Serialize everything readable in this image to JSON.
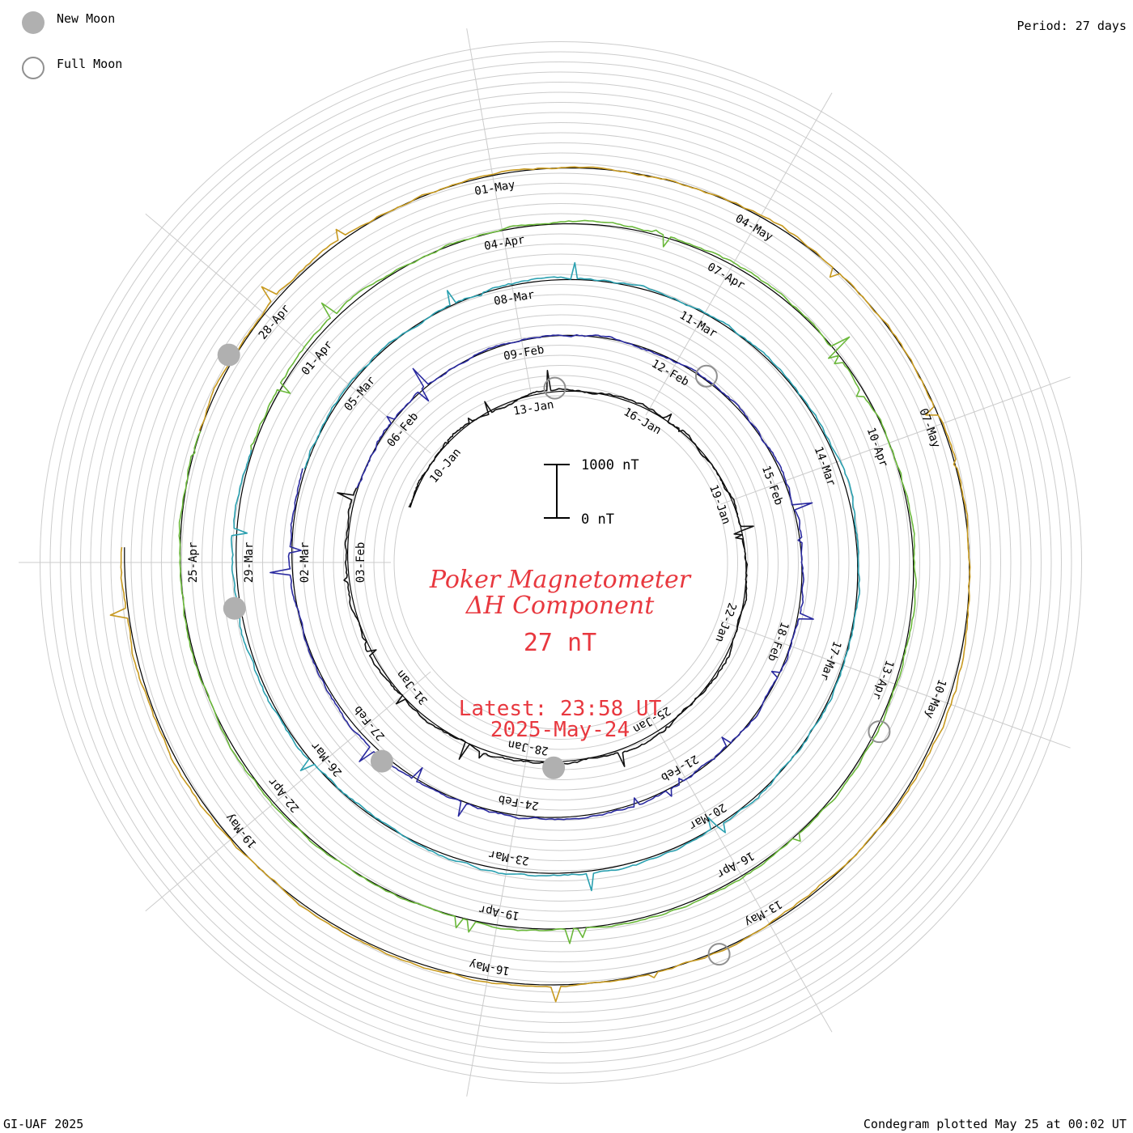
{
  "legend": {
    "new_moon_label": "New Moon",
    "full_moon_label": "Full Moon",
    "new_moon_color": "#b0b0b0",
    "full_moon_color": "#909090"
  },
  "header": {
    "period": "Period: 27 days"
  },
  "footer": {
    "credit": "GI-UAF 2025",
    "plotted": "Condegram plotted May 25 at 00:02 UT"
  },
  "center": {
    "title_line1": "Poker Magnetometer",
    "title_line2": "ΔH Component",
    "value": "27 nT",
    "latest_line1": "Latest: 23:58 UT",
    "latest_line2": "2025-May-24",
    "text_color": "#e8383f"
  },
  "scale_bar": {
    "top_label": "1000 nT",
    "bottom_label": "0 nT"
  },
  "chart_data": {
    "type": "line",
    "title": "Poker Magnetometer ΔH Component",
    "period_days": 27,
    "scale_nT": [
      0,
      1000
    ],
    "cycles": [
      {
        "color": "#111111",
        "labels": [
          "10-Jan",
          "13-Jan",
          "16-Jan",
          "19-Jan",
          "22-Jan",
          "25-Jan",
          "28-Jan",
          "31-Jan",
          "03-Feb"
        ]
      },
      {
        "color": "#2a2aa0",
        "labels": [
          "06-Feb",
          "09-Feb",
          "12-Feb",
          "15-Feb",
          "18-Feb",
          "21-Feb",
          "24-Feb",
          "27-Feb",
          "02-Mar"
        ]
      },
      {
        "color": "#2aa0b0",
        "labels": [
          "05-Mar",
          "08-Mar",
          "11-Mar",
          "14-Mar",
          "17-Mar",
          "20-Mar",
          "23-Mar",
          "26-Mar",
          "29-Mar"
        ]
      },
      {
        "color": "#6ab83a",
        "labels": [
          "01-Apr",
          "04-Apr",
          "07-Apr",
          "10-Apr",
          "13-Apr",
          "16-Apr",
          "19-Apr",
          "22-Apr",
          "25-Apr"
        ]
      },
      {
        "color": "#c89a20",
        "labels": [
          "28-Apr",
          "01-May",
          "04-May",
          "07-May",
          "10-May",
          "13-May",
          "16-May",
          "19-May"
        ]
      }
    ],
    "new_moons": [
      "28-Apr",
      "29-Mar",
      "27-Feb",
      "28-Jan"
    ],
    "full_moons": [
      "13-Jan",
      "12-Feb",
      "13-Apr",
      "13-May"
    ]
  }
}
